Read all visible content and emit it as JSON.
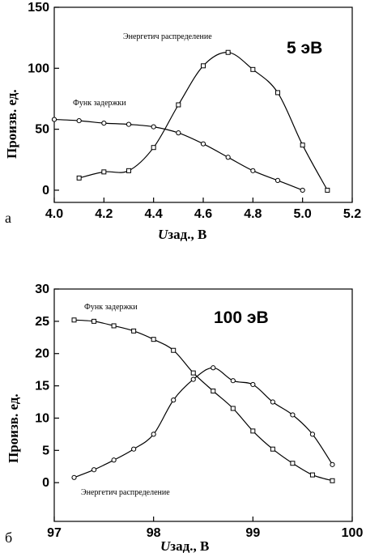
{
  "chart_data": [
    {
      "type": "line",
      "panel_label": "а",
      "energy_label": "5 эВ",
      "ylabel": "Произв. ед.",
      "xlabel_var": "U",
      "xlabel_rest": "зад.,   В",
      "xlim": [
        4.0,
        5.2
      ],
      "ylim": [
        -10,
        150
      ],
      "xticks": [
        "4.0",
        "4.2",
        "4.4",
        "4.6",
        "4.8",
        "5.0",
        "5.2"
      ],
      "yticks": [
        "0",
        "50",
        "100",
        "150"
      ],
      "series": [
        {
          "name": "Энергетич распределение",
          "x": [
            4.1,
            4.2,
            4.3,
            4.4,
            4.5,
            4.6,
            4.7,
            4.8,
            4.9,
            5.0,
            5.1
          ],
          "y": [
            10,
            15,
            16,
            35,
            70,
            102,
            113,
            99,
            80,
            37,
            0
          ]
        },
        {
          "name": "Функ задержки",
          "x": [
            4.0,
            4.1,
            4.2,
            4.3,
            4.4,
            4.5,
            4.6,
            4.7,
            4.8,
            4.9,
            5.0
          ],
          "y": [
            58,
            57,
            55,
            54,
            52,
            47,
            38,
            27,
            16,
            8,
            0
          ]
        }
      ]
    },
    {
      "type": "line",
      "panel_label": "б",
      "energy_label": "100 эВ",
      "ylabel": "Произв. ед.",
      "xlabel_var": "U",
      "xlabel_rest": "зад.,   В",
      "xlim": [
        97,
        100
      ],
      "ylim": [
        -6,
        30
      ],
      "xticks": [
        "97",
        "98",
        "99",
        "100"
      ],
      "yticks": [
        "0",
        "5",
        "10",
        "15",
        "20",
        "25",
        "30"
      ],
      "series": [
        {
          "name": "Функ задержки",
          "x": [
            97.2,
            97.4,
            97.6,
            97.8,
            98.0,
            98.2,
            98.4,
            98.6,
            98.8,
            99.0,
            99.2,
            99.4,
            99.6,
            99.8
          ],
          "y": [
            25.2,
            25.0,
            24.3,
            23.5,
            22.2,
            20.5,
            17.0,
            14.2,
            11.5,
            8.0,
            5.2,
            3.0,
            1.2,
            0.3
          ]
        },
        {
          "name": "Энергетич распределение",
          "x": [
            97.2,
            97.4,
            97.6,
            97.8,
            98.0,
            98.2,
            98.4,
            98.6,
            98.8,
            99.0,
            99.2,
            99.4,
            99.6,
            99.8
          ],
          "y": [
            0.8,
            2.0,
            3.5,
            5.2,
            7.5,
            12.8,
            16.0,
            17.8,
            15.8,
            15.2,
            12.5,
            10.5,
            7.5,
            2.8
          ]
        }
      ]
    }
  ]
}
